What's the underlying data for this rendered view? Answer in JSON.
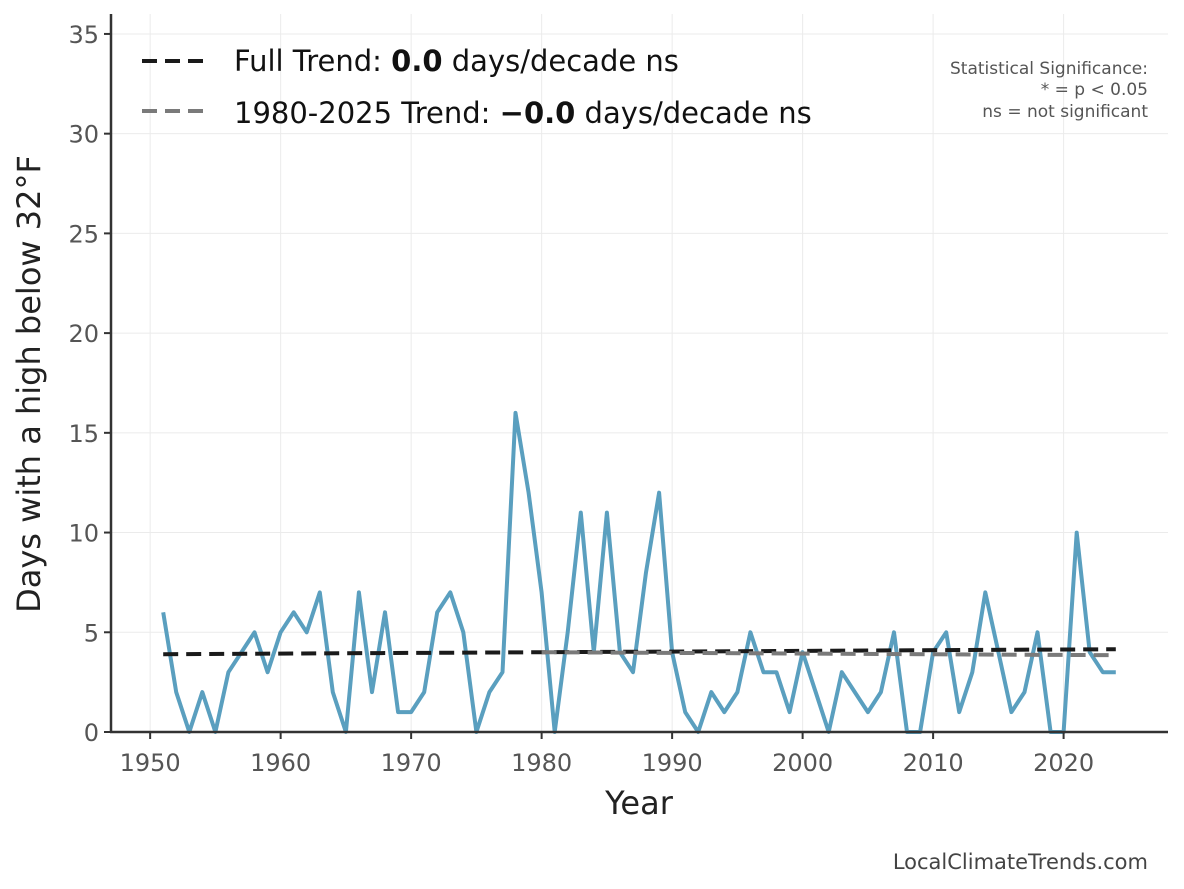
{
  "chart_data": {
    "type": "line",
    "xlabel": "Year",
    "ylabel": "Days with a high below 32°F",
    "xlim": [
      1947,
      2028
    ],
    "ylim": [
      0,
      36
    ],
    "xticks": [
      1950,
      1960,
      1970,
      1980,
      1990,
      2000,
      2010,
      2020
    ],
    "yticks": [
      0,
      5,
      10,
      15,
      20,
      25,
      30,
      35
    ],
    "grid": true,
    "legend_position": "top-left",
    "series": [
      {
        "color": "#5a9fbf",
        "x": [
          1951,
          1952,
          1953,
          1954,
          1955,
          1956,
          1957,
          1958,
          1959,
          1960,
          1961,
          1962,
          1963,
          1964,
          1965,
          1966,
          1967,
          1968,
          1969,
          1970,
          1971,
          1972,
          1973,
          1974,
          1975,
          1976,
          1977,
          1978,
          1979,
          1980,
          1981,
          1982,
          1983,
          1984,
          1985,
          1986,
          1987,
          1988,
          1989,
          1990,
          1991,
          1992,
          1993,
          1994,
          1995,
          1996,
          1997,
          1998,
          1999,
          2000,
          2001,
          2002,
          2003,
          2004,
          2005,
          2006,
          2007,
          2008,
          2009,
          2010,
          2011,
          2012,
          2013,
          2014,
          2015,
          2016,
          2017,
          2018,
          2019,
          2020,
          2021,
          2022,
          2023,
          2024
        ],
        "values": [
          6,
          2,
          0,
          2,
          0,
          3,
          4,
          5,
          3,
          5,
          6,
          5,
          7,
          2,
          0,
          7,
          2,
          6,
          1,
          1,
          2,
          6,
          7,
          5,
          0,
          2,
          3,
          16,
          12,
          7,
          0,
          5,
          11,
          4,
          11,
          4,
          3,
          8,
          12,
          4,
          1,
          0,
          2,
          1,
          2,
          5,
          3,
          3,
          1,
          4,
          2,
          0,
          3,
          2,
          1,
          2,
          5,
          0,
          0,
          4,
          5,
          1,
          3,
          7,
          4,
          1,
          2,
          5,
          0,
          0,
          10,
          4,
          3,
          3
        ]
      }
    ],
    "trends": [
      {
        "name": "Full Trend",
        "label_prefix": "Full Trend: ",
        "value_text": "0.0",
        "label_suffix": " days/decade ns",
        "color": "#1a1a1a",
        "x": [
          1951,
          2024
        ],
        "y": [
          3.9,
          4.15
        ]
      },
      {
        "name": "1980-2025 Trend",
        "label_prefix": "1980-2025 Trend: ",
        "value_text": "−0.0",
        "label_suffix": " days/decade ns",
        "color": "#7a7a7a",
        "x": [
          1980,
          2024
        ],
        "y": [
          4.0,
          3.85
        ]
      }
    ],
    "annotations": {
      "significance_title": "Statistical Significance:",
      "significance_p": "* = p < 0.05",
      "significance_ns": "ns = not significant"
    },
    "footer": "LocalClimateTrends.com"
  }
}
